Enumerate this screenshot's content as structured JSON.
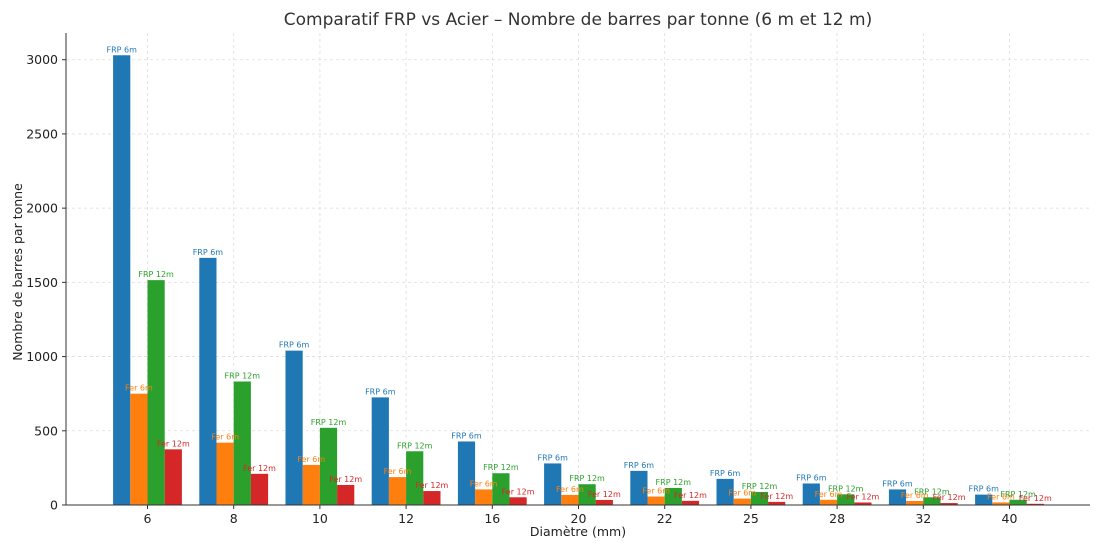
{
  "chart_data": {
    "type": "bar",
    "title": "Comparatif FRP vs Acier – Nombre de barres par tonne (6 m et 12 m)",
    "xlabel": "Diamètre (mm)",
    "ylabel": "Nombre de barres par tonne",
    "categories": [
      "6",
      "8",
      "10",
      "12",
      "16",
      "20",
      "22",
      "25",
      "28",
      "32",
      "40"
    ],
    "ylim": [
      0,
      3180
    ],
    "yticks": [
      0,
      500,
      1000,
      1500,
      2000,
      2500,
      3000
    ],
    "grid": true,
    "series": [
      {
        "name": "FRP 6m",
        "color": "#1f77b4",
        "values": [
          3030,
          1665,
          1040,
          725,
          428,
          280,
          230,
          176,
          145,
          105,
          70
        ]
      },
      {
        "name": "Fer 6m",
        "color": "#ff7f0e",
        "values": [
          750,
          420,
          270,
          188,
          105,
          68,
          57,
          43,
          35,
          27,
          17
        ]
      },
      {
        "name": "FRP 12m",
        "color": "#2ca02c",
        "values": [
          1515,
          832,
          520,
          362,
          214,
          140,
          115,
          88,
          72,
          52,
          35
        ]
      },
      {
        "name": "Fer 12m",
        "color": "#d62728",
        "values": [
          375,
          210,
          135,
          94,
          52,
          34,
          28,
          21,
          17,
          13,
          8
        ]
      }
    ]
  }
}
